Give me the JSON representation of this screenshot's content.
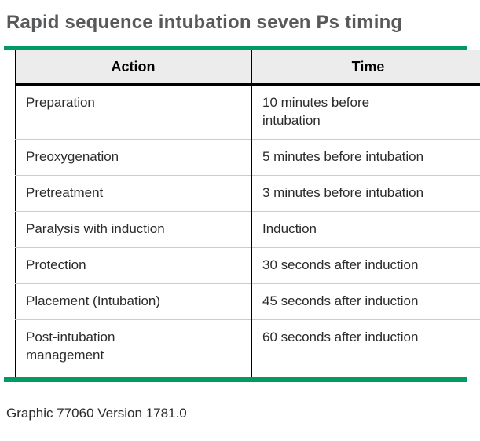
{
  "title": "Rapid sequence intubation seven Ps timing",
  "colors": {
    "accent_green": "#009a63",
    "header_background": "#ececec",
    "table_border": "#000000",
    "row_separator": "#cbcbcb",
    "title_gray": "#58595b",
    "body_text": "#2b2b2b"
  },
  "table": {
    "headers": [
      "Action",
      "Time"
    ],
    "rows": [
      {
        "action": "Preparation",
        "time": "10 minutes before\nintubation"
      },
      {
        "action": "Preoxygenation",
        "time": "5 minutes before intubation"
      },
      {
        "action": "Pretreatment",
        "time": "3 minutes before intubation"
      },
      {
        "action": "Paralysis with induction",
        "time": "Induction"
      },
      {
        "action": "Protection",
        "time": "30 seconds after induction"
      },
      {
        "action": "Placement (Intubation)",
        "time": "45 seconds after induction"
      },
      {
        "action": "Post-intubation\nmanagement",
        "time": "60 seconds after induction"
      }
    ]
  },
  "footer": "Graphic 77060 Version 1781.0"
}
